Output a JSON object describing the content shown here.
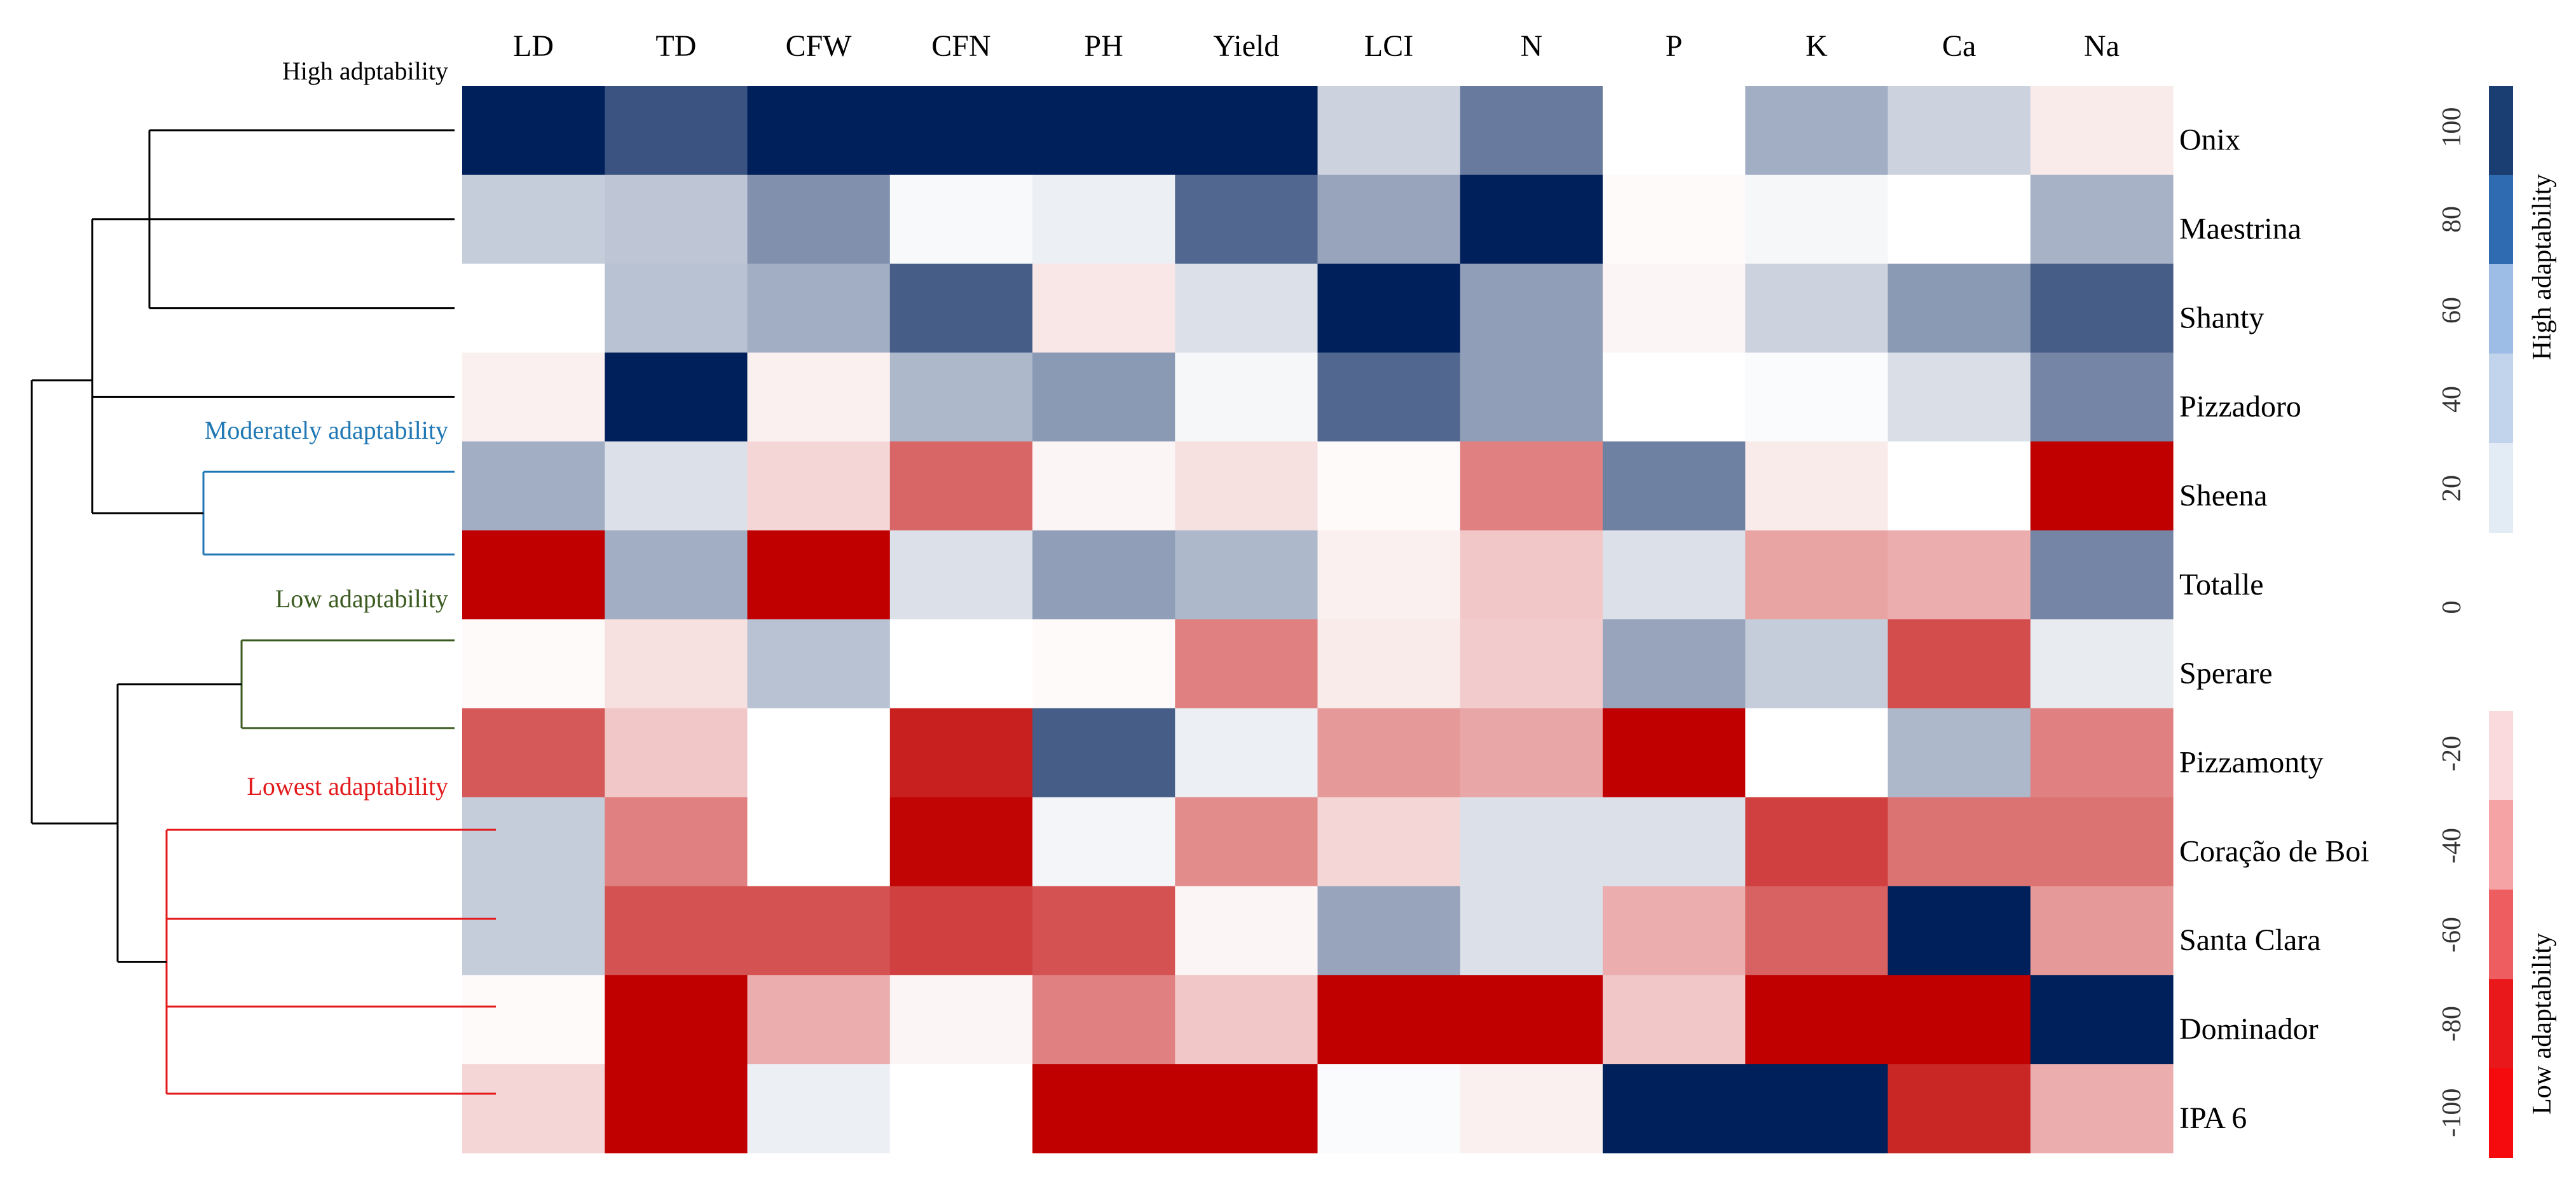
{
  "chart_data": {
    "type": "heatmap",
    "title": "",
    "columns": [
      "LD",
      "TD",
      "CFW",
      "CFN",
      "PH",
      "Yield",
      "LCI",
      "N",
      "P",
      "K",
      "Ca",
      "Na"
    ],
    "rows": [
      "Onix",
      "Maestrina",
      "Shanty",
      "Pizzadoro",
      "Sheena",
      "Totalle",
      "Sperare",
      "Pizzamonty",
      "Coração de Boi",
      "Santa Clara",
      "Dominador",
      "IPA 6"
    ],
    "values": [
      [
        110,
        85,
        110,
        110,
        110,
        110,
        22,
        65,
        0,
        40,
        22,
        -8
      ],
      [
        25,
        28,
        55,
        3,
        8,
        75,
        45,
        110,
        -2,
        4,
        0,
        38
      ],
      [
        0,
        30,
        40,
        80,
        -10,
        15,
        110,
        48,
        -4,
        22,
        50,
        80
      ],
      [
        -6,
        110,
        -6,
        35,
        50,
        4,
        75,
        48,
        0,
        2,
        16,
        60
      ],
      [
        40,
        15,
        -16,
        -60,
        -4,
        -12,
        -2,
        -50,
        62,
        -8,
        0,
        -100
      ],
      [
        -100,
        40,
        -100,
        15,
        48,
        35,
        -6,
        -22,
        15,
        -36,
        -32,
        60
      ],
      [
        -2,
        -12,
        30,
        0,
        -2,
        -50,
        -8,
        -20,
        45,
        25,
        -70,
        10
      ],
      [
        -65,
        -22,
        0,
        -88,
        80,
        8,
        -40,
        -35,
        -100,
        0,
        35,
        -50
      ],
      [
        25,
        -50,
        0,
        -98,
        5,
        -45,
        -16,
        15,
        15,
        -75,
        -55,
        -55
      ],
      [
        25,
        -68,
        -68,
        -75,
        -68,
        -4,
        45,
        15,
        -32,
        -62,
        110,
        -40
      ],
      [
        -2,
        -100,
        -32,
        -4,
        -50,
        -22,
        -100,
        -100,
        -22,
        -100,
        -100,
        110
      ],
      [
        -16,
        -100,
        8,
        0,
        -100,
        -100,
        2,
        -6,
        110,
        110,
        -85,
        -32
      ]
    ],
    "groups": [
      {
        "label": "High adptability",
        "color": "#000000"
      },
      {
        "label": "Moderately adaptability",
        "color": "#1f77b4"
      },
      {
        "label": "Low adaptability",
        "color": "#3a5a1f"
      },
      {
        "label": "Lowest adaptability",
        "color": "#e31a1c"
      }
    ],
    "legend": {
      "position": "right",
      "high_ticks": [
        "100",
        "80",
        "60",
        "40",
        "20"
      ],
      "zero_tick": "0",
      "low_ticks": [
        "-20",
        "-40",
        "-60",
        "-80",
        "-100"
      ],
      "high_label": "High adaptability",
      "low_label": "Low adaptability",
      "high_colors": [
        "#1a3e72",
        "#2e6bb0",
        "#9ebde6",
        "#c2d4ec",
        "#e3ebf5"
      ],
      "low_colors": [
        "#fadadd",
        "#f5a3a5",
        "#ee5d5f",
        "#e8181b",
        "#f50b0e"
      ]
    },
    "colors": {
      "positive": "#00205b",
      "negative": "#c00000",
      "neutral": "#ffffff",
      "dendrogram": "#000000"
    },
    "vmin": -100,
    "vmax": 110
  }
}
